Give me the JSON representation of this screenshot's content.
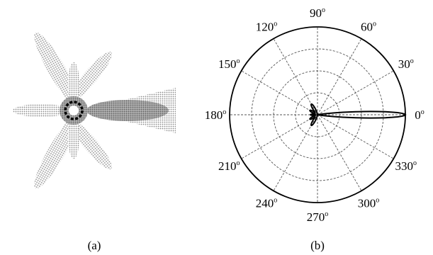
{
  "captions": {
    "a": "(a)",
    "b": "(b)"
  },
  "colors": {
    "ink": "#000000",
    "grid": "#555555",
    "dot_fill": "#bdbdbd",
    "lobe_fill": "#9a9a9a"
  },
  "chart_data": [
    {
      "panel": "a",
      "type": "other",
      "description_lobes": [
        {
          "angle_deg": 0,
          "relative_length": 1.0
        },
        {
          "angle_deg": 60,
          "relative_length": 0.55
        },
        {
          "angle_deg": 120,
          "relative_length": 0.75
        },
        {
          "angle_deg": 180,
          "relative_length": 0.6
        },
        {
          "angle_deg": 240,
          "relative_length": 0.75
        },
        {
          "angle_deg": 300,
          "relative_length": 0.55
        }
      ]
    },
    {
      "panel": "b",
      "type": "polar",
      "angular_ticks": [
        {
          "angle": 0,
          "label": "0"
        },
        {
          "angle": 30,
          "label": "30"
        },
        {
          "angle": 60,
          "label": "60"
        },
        {
          "angle": 90,
          "label": "90"
        },
        {
          "angle": 120,
          "label": "120"
        },
        {
          "angle": 150,
          "label": "150"
        },
        {
          "angle": 180,
          "label": "180"
        },
        {
          "angle": 210,
          "label": "210"
        },
        {
          "angle": 240,
          "label": "240"
        },
        {
          "angle": 270,
          "label": "270"
        },
        {
          "angle": 300,
          "label": "300"
        },
        {
          "angle": 330,
          "label": "330"
        }
      ],
      "degree_symbol": "o",
      "radial_rings": 4,
      "grid": true,
      "series": [
        {
          "lobes": [
            {
              "angle": 0,
              "r": 1.0,
              "half_width_deg": 3.5
            },
            {
              "angle": 120,
              "r": 0.14,
              "half_width_deg": 9
            },
            {
              "angle": 150,
              "r": 0.1,
              "half_width_deg": 9
            },
            {
              "angle": 180,
              "r": 0.08,
              "half_width_deg": 8
            },
            {
              "angle": 210,
              "r": 0.1,
              "half_width_deg": 9
            },
            {
              "angle": 240,
              "r": 0.14,
              "half_width_deg": 9
            }
          ]
        }
      ]
    }
  ]
}
